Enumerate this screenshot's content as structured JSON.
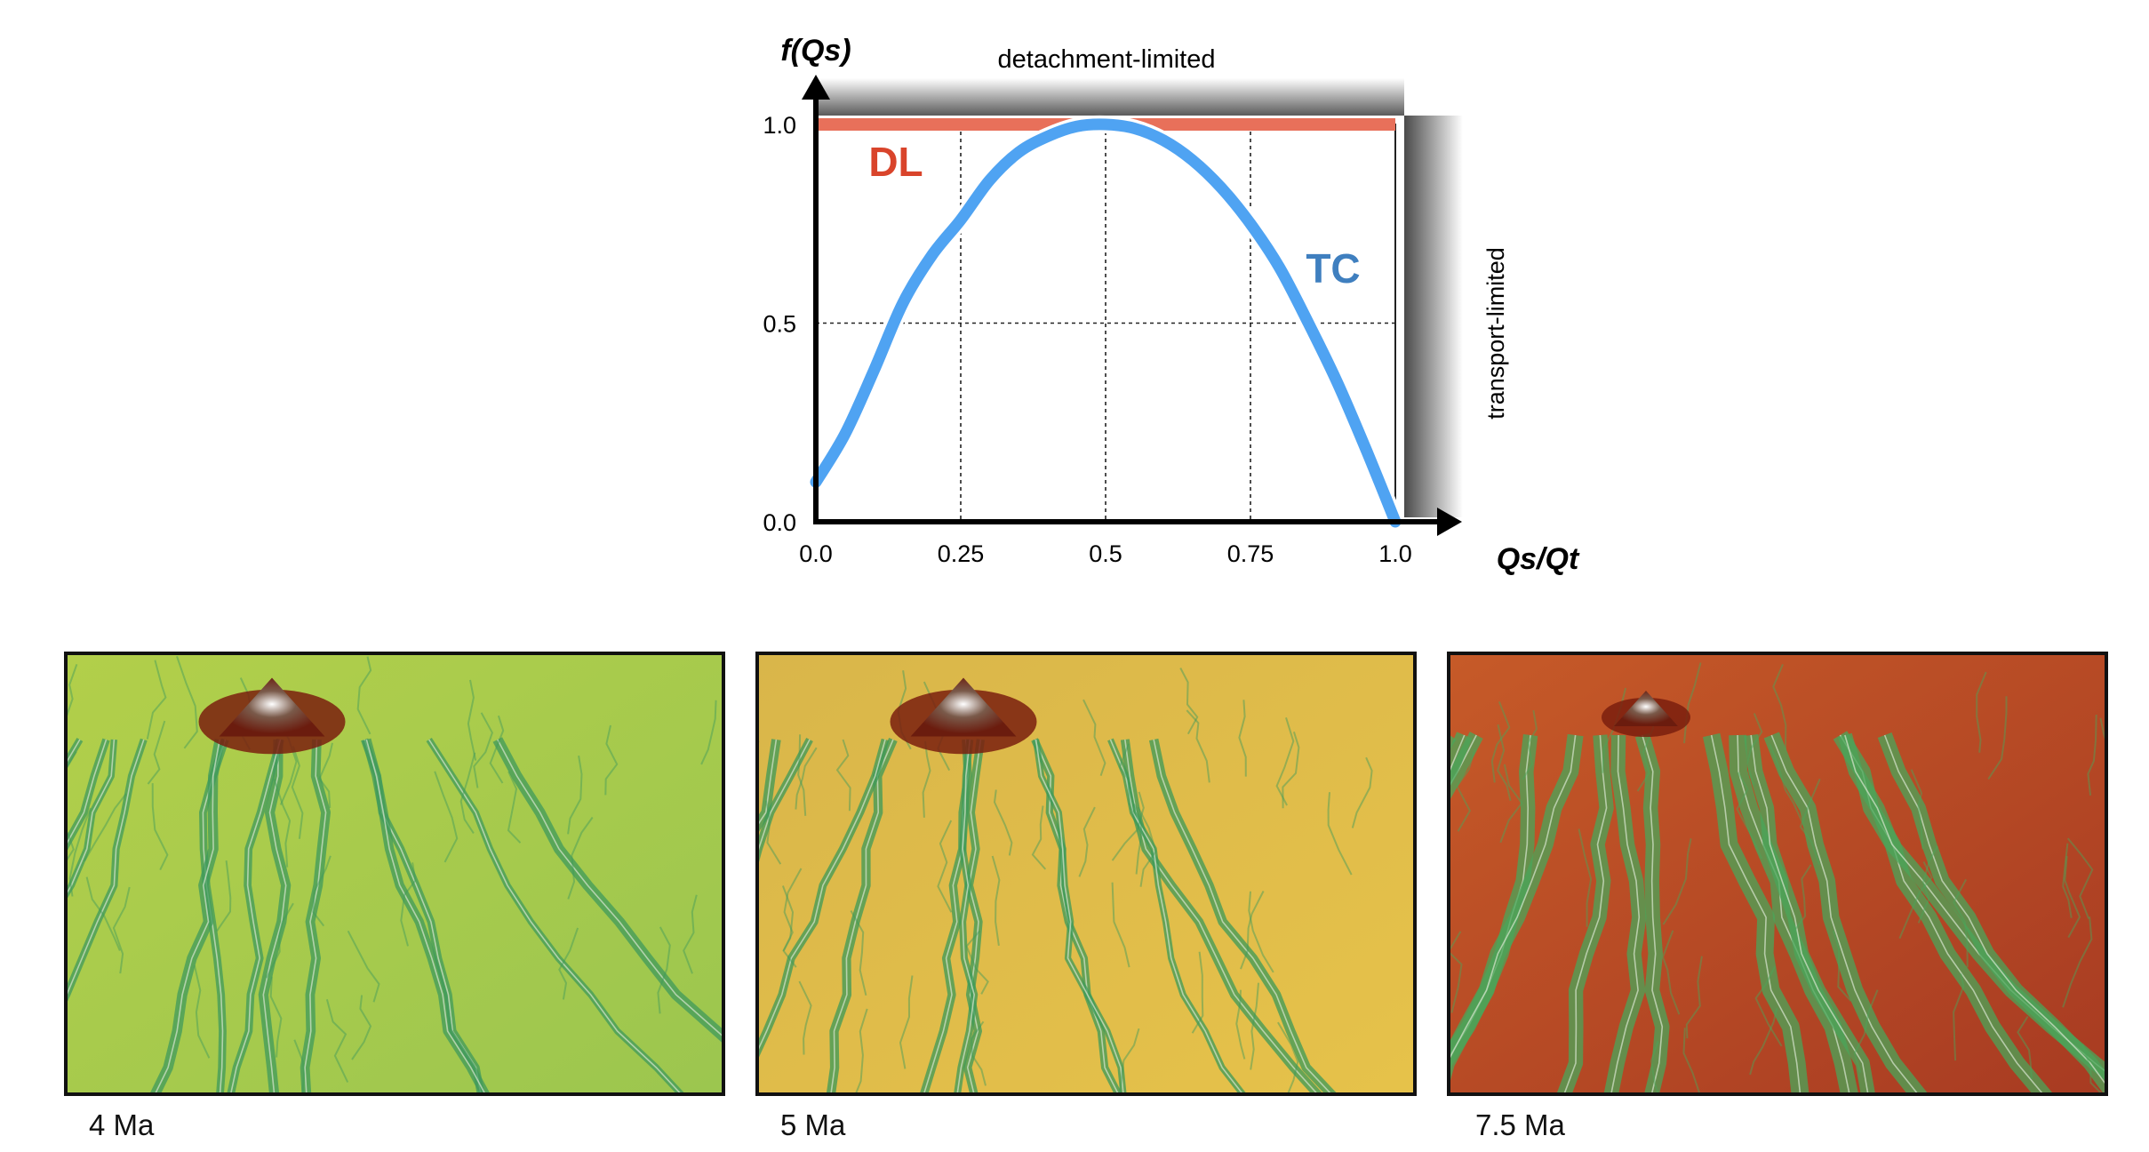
{
  "chart_data": {
    "type": "line",
    "ylabel": "f(Qs)",
    "xlabel": "Qs/Qt",
    "top_label": "detachment-limited",
    "right_label": "transport-limited",
    "x_ticks": [
      "0.0",
      "0.25",
      "0.5",
      "0.75",
      "1.0"
    ],
    "y_ticks": [
      "0.0",
      "0.5",
      "1.0"
    ],
    "xlim": [
      0,
      1
    ],
    "ylim": [
      0,
      1
    ],
    "grid": true,
    "series": [
      {
        "name": "DL",
        "color": "#e8705a",
        "x": [
          0,
          1
        ],
        "y": [
          1.0,
          1.0
        ]
      },
      {
        "name": "TC",
        "color": "#4fa3f2",
        "x": [
          0.0,
          0.05,
          0.1,
          0.15,
          0.2,
          0.25,
          0.3,
          0.35,
          0.4,
          0.45,
          0.5,
          0.55,
          0.6,
          0.65,
          0.7,
          0.75,
          0.8,
          0.85,
          0.9,
          0.95,
          1.0
        ],
        "y": [
          0.1,
          0.22,
          0.38,
          0.55,
          0.67,
          0.76,
          0.86,
          0.93,
          0.97,
          0.995,
          1.0,
          0.99,
          0.96,
          0.91,
          0.84,
          0.75,
          0.64,
          0.5,
          0.35,
          0.18,
          0.0
        ]
      }
    ]
  },
  "panels": [
    {
      "caption": "4 Ma",
      "colors": [
        "#9cc64f",
        "#b2cf4a",
        "#3f9a5c"
      ]
    },
    {
      "caption": "5 Ma",
      "colors": [
        "#e6c24a",
        "#d9b64a",
        "#3c9a5a"
      ]
    },
    {
      "caption": "7.5 Ma",
      "colors": [
        "#a83b22",
        "#c65a28",
        "#4aa65a"
      ]
    }
  ]
}
